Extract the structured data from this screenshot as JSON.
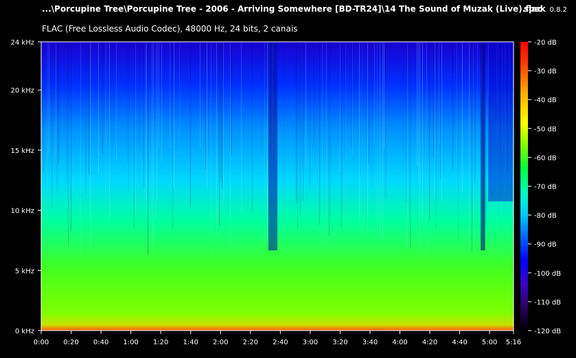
{
  "header": {
    "file_title": "...\\Porcupine Tree\\Porcupine Tree - 2006 - Arriving Somewhere [BD-TR24]\\14 The Sound of Muzak (Live).flac",
    "app_name": "spek",
    "app_version": "0.8.2",
    "audio_info": "FLAC (Free Lossless Audio Codec), 48000 Hz, 24 bits, 2 canais"
  },
  "chart_data": {
    "type": "heatmap",
    "title": "",
    "xlabel": "",
    "ylabel": "",
    "x_ticks": [
      "0:00",
      "0:20",
      "0:40",
      "1:00",
      "1:20",
      "1:40",
      "2:00",
      "2:20",
      "2:40",
      "3:00",
      "3:20",
      "3:40",
      "4:00",
      "4:20",
      "4:40",
      "5:00",
      "5:16"
    ],
    "x_tick_seconds": [
      0,
      20,
      40,
      60,
      80,
      100,
      120,
      140,
      160,
      180,
      200,
      220,
      240,
      260,
      280,
      300,
      316
    ],
    "x_range_seconds": [
      0,
      316
    ],
    "y_ticks": [
      "0 kHz",
      "5 kHz",
      "10 kHz",
      "15 kHz",
      "20 kHz",
      "24 kHz"
    ],
    "y_tick_khz": [
      0,
      5,
      10,
      15,
      20,
      24
    ],
    "y_range_khz": [
      0,
      24
    ],
    "colorbar_ticks": [
      "-20 dB",
      "-30 dB",
      "-40 dB",
      "-50 dB",
      "-60 dB",
      "-70 dB",
      "-80 dB",
      "-90 dB",
      "-100 dB",
      "-110 dB",
      "-120 dB"
    ],
    "colorbar_db": [
      -20,
      -30,
      -40,
      -50,
      -60,
      -70,
      -80,
      -90,
      -100,
      -110,
      -120
    ],
    "colorbar_range_db": [
      -120,
      -20
    ],
    "colormap": [
      "#000000",
      "#2a0060",
      "#3a00c0",
      "#0000ff",
      "#0060ff",
      "#00c8ff",
      "#00ffc0",
      "#00ff40",
      "#80ff00",
      "#ffff00",
      "#ffb000",
      "#ff4000",
      "#ff0000"
    ]
  }
}
